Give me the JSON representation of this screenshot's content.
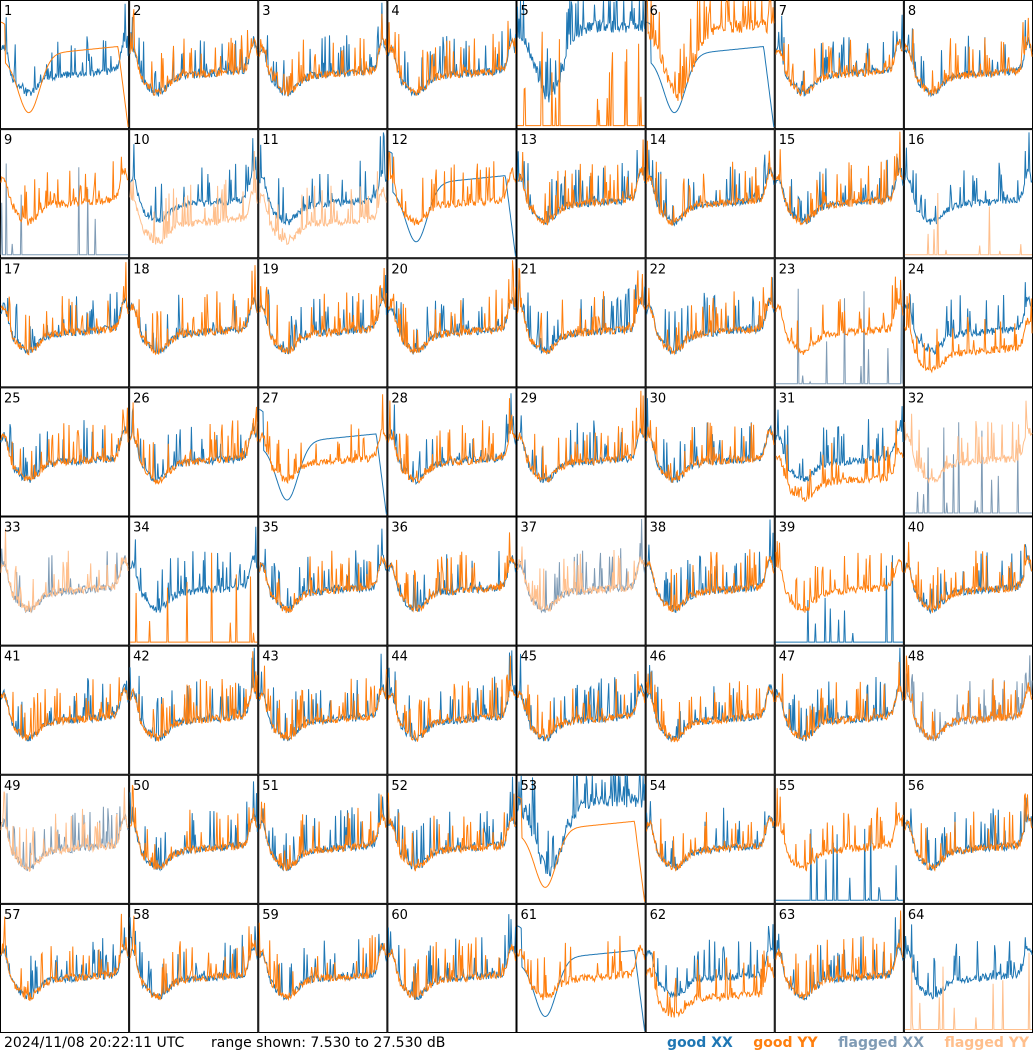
{
  "footer": {
    "timestamp": "2024/11/08 20:22:11 UTC",
    "range_text": "range shown: 7.530 to 27.530 dB"
  },
  "legend": {
    "good_xx": "good XX",
    "good_yy": "good YY",
    "flagged_xx": "flagged XX",
    "flagged_yy": "flagged YY"
  },
  "colors": {
    "good_xx": "#1f77b4",
    "good_yy": "#ff7f0e",
    "flagged_xx": "#7f9bb5",
    "flagged_yy": "#ffbf8c",
    "panel_border": "#000000"
  },
  "chart_data": {
    "type": "line",
    "layout": "8x8 small multiples",
    "ylim_db": [
      7.53,
      27.53
    ],
    "panels": [
      {
        "label": "1",
        "xx": "good",
        "yy": "good",
        "xx_shape": "noisy",
        "yy_shape": "smooth-bowl"
      },
      {
        "label": "2",
        "xx": "good",
        "yy": "good",
        "xx_shape": "noisy",
        "yy_shape": "noisy"
      },
      {
        "label": "3",
        "xx": "good",
        "yy": "good",
        "xx_shape": "noisy",
        "yy_shape": "noisy"
      },
      {
        "label": "4",
        "xx": "good",
        "yy": "good",
        "xx_shape": "noisy",
        "yy_shape": "noisy"
      },
      {
        "label": "5",
        "xx": "good",
        "yy": "good",
        "xx_shape": "deep-noisy",
        "yy_shape": "spikes-low"
      },
      {
        "label": "6",
        "xx": "good",
        "yy": "good",
        "xx_shape": "smooth-bowl",
        "yy_shape": "deep-noisy"
      },
      {
        "label": "7",
        "xx": "good",
        "yy": "good",
        "xx_shape": "noisy",
        "yy_shape": "noisy"
      },
      {
        "label": "8",
        "xx": "good",
        "yy": "good",
        "xx_shape": "noisy",
        "yy_shape": "noisy"
      },
      {
        "label": "9",
        "xx": "flagged",
        "yy": "good",
        "xx_shape": "spikes-low",
        "yy_shape": "noisy"
      },
      {
        "label": "10",
        "xx": "good",
        "yy": "flagged",
        "xx_shape": "noisy",
        "yy_shape": "low-noisy"
      },
      {
        "label": "11",
        "xx": "good",
        "yy": "flagged",
        "xx_shape": "noisy",
        "yy_shape": "low-noisy"
      },
      {
        "label": "12",
        "xx": "good",
        "yy": "good",
        "xx_shape": "smooth-bowl",
        "yy_shape": "noisy"
      },
      {
        "label": "13",
        "xx": "good",
        "yy": "good",
        "xx_shape": "noisy",
        "yy_shape": "noisy"
      },
      {
        "label": "14",
        "xx": "good",
        "yy": "good",
        "xx_shape": "noisy",
        "yy_shape": "noisy"
      },
      {
        "label": "15",
        "xx": "good",
        "yy": "good",
        "xx_shape": "noisy",
        "yy_shape": "noisy"
      },
      {
        "label": "16",
        "xx": "good",
        "yy": "flagged",
        "xx_shape": "noisy",
        "yy_shape": "spikes-low"
      },
      {
        "label": "17",
        "xx": "good",
        "yy": "good",
        "xx_shape": "noisy",
        "yy_shape": "noisy"
      },
      {
        "label": "18",
        "xx": "good",
        "yy": "good",
        "xx_shape": "noisy",
        "yy_shape": "noisy"
      },
      {
        "label": "19",
        "xx": "good",
        "yy": "good",
        "xx_shape": "noisy",
        "yy_shape": "noisy"
      },
      {
        "label": "20",
        "xx": "good",
        "yy": "good",
        "xx_shape": "noisy",
        "yy_shape": "noisy"
      },
      {
        "label": "21",
        "xx": "good",
        "yy": "good",
        "xx_shape": "noisy",
        "yy_shape": "noisy"
      },
      {
        "label": "22",
        "xx": "good",
        "yy": "good",
        "xx_shape": "noisy",
        "yy_shape": "noisy"
      },
      {
        "label": "23",
        "xx": "flagged",
        "yy": "good",
        "xx_shape": "spikes-low",
        "yy_shape": "noisy"
      },
      {
        "label": "24",
        "xx": "good",
        "yy": "good",
        "xx_shape": "noisy",
        "yy_shape": "low-noisy"
      },
      {
        "label": "25",
        "xx": "good",
        "yy": "good",
        "xx_shape": "noisy",
        "yy_shape": "noisy"
      },
      {
        "label": "26",
        "xx": "good",
        "yy": "good",
        "xx_shape": "noisy",
        "yy_shape": "noisy"
      },
      {
        "label": "27",
        "xx": "good",
        "yy": "good",
        "xx_shape": "smooth-bowl",
        "yy_shape": "noisy"
      },
      {
        "label": "28",
        "xx": "good",
        "yy": "good",
        "xx_shape": "noisy",
        "yy_shape": "noisy"
      },
      {
        "label": "29",
        "xx": "good",
        "yy": "good",
        "xx_shape": "noisy",
        "yy_shape": "noisy"
      },
      {
        "label": "30",
        "xx": "good",
        "yy": "good",
        "xx_shape": "noisy",
        "yy_shape": "noisy"
      },
      {
        "label": "31",
        "xx": "good",
        "yy": "good",
        "xx_shape": "noisy",
        "yy_shape": "low-noisy"
      },
      {
        "label": "32",
        "xx": "flagged",
        "yy": "flagged",
        "xx_shape": "spikes-low",
        "yy_shape": "noisy"
      },
      {
        "label": "33",
        "xx": "flagged",
        "yy": "flagged",
        "xx_shape": "noisy",
        "yy_shape": "noisy"
      },
      {
        "label": "34",
        "xx": "good",
        "yy": "good",
        "xx_shape": "noisy",
        "yy_shape": "spikes-low"
      },
      {
        "label": "35",
        "xx": "good",
        "yy": "good",
        "xx_shape": "noisy",
        "yy_shape": "noisy"
      },
      {
        "label": "36",
        "xx": "good",
        "yy": "good",
        "xx_shape": "noisy",
        "yy_shape": "noisy"
      },
      {
        "label": "37",
        "xx": "flagged",
        "yy": "flagged",
        "xx_shape": "noisy",
        "yy_shape": "noisy"
      },
      {
        "label": "38",
        "xx": "good",
        "yy": "good",
        "xx_shape": "noisy",
        "yy_shape": "noisy"
      },
      {
        "label": "39",
        "xx": "good",
        "yy": "good",
        "xx_shape": "spikes-low",
        "yy_shape": "noisy"
      },
      {
        "label": "40",
        "xx": "good",
        "yy": "good",
        "xx_shape": "noisy",
        "yy_shape": "noisy"
      },
      {
        "label": "41",
        "xx": "good",
        "yy": "good",
        "xx_shape": "noisy",
        "yy_shape": "noisy"
      },
      {
        "label": "42",
        "xx": "good",
        "yy": "good",
        "xx_shape": "noisy",
        "yy_shape": "noisy"
      },
      {
        "label": "43",
        "xx": "good",
        "yy": "good",
        "xx_shape": "noisy",
        "yy_shape": "noisy"
      },
      {
        "label": "44",
        "xx": "good",
        "yy": "good",
        "xx_shape": "noisy",
        "yy_shape": "noisy"
      },
      {
        "label": "45",
        "xx": "good",
        "yy": "good",
        "xx_shape": "noisy",
        "yy_shape": "noisy"
      },
      {
        "label": "46",
        "xx": "good",
        "yy": "good",
        "xx_shape": "noisy",
        "yy_shape": "noisy"
      },
      {
        "label": "47",
        "xx": "good",
        "yy": "good",
        "xx_shape": "noisy",
        "yy_shape": "noisy"
      },
      {
        "label": "48",
        "xx": "flagged",
        "yy": "good",
        "xx_shape": "noisy",
        "yy_shape": "noisy"
      },
      {
        "label": "49",
        "xx": "flagged",
        "yy": "flagged",
        "xx_shape": "noisy",
        "yy_shape": "noisy"
      },
      {
        "label": "50",
        "xx": "good",
        "yy": "good",
        "xx_shape": "noisy",
        "yy_shape": "noisy"
      },
      {
        "label": "51",
        "xx": "good",
        "yy": "good",
        "xx_shape": "noisy",
        "yy_shape": "noisy"
      },
      {
        "label": "52",
        "xx": "good",
        "yy": "good",
        "xx_shape": "noisy",
        "yy_shape": "noisy"
      },
      {
        "label": "53",
        "xx": "good",
        "yy": "good",
        "xx_shape": "deep-noisy",
        "yy_shape": "smooth-bowl"
      },
      {
        "label": "54",
        "xx": "good",
        "yy": "good",
        "xx_shape": "noisy",
        "yy_shape": "noisy"
      },
      {
        "label": "55",
        "xx": "good",
        "yy": "good",
        "xx_shape": "spikes-low",
        "yy_shape": "noisy"
      },
      {
        "label": "56",
        "xx": "good",
        "yy": "good",
        "xx_shape": "noisy",
        "yy_shape": "noisy"
      },
      {
        "label": "57",
        "xx": "good",
        "yy": "good",
        "xx_shape": "noisy",
        "yy_shape": "noisy"
      },
      {
        "label": "58",
        "xx": "good",
        "yy": "good",
        "xx_shape": "noisy",
        "yy_shape": "noisy"
      },
      {
        "label": "59",
        "xx": "good",
        "yy": "good",
        "xx_shape": "noisy",
        "yy_shape": "noisy"
      },
      {
        "label": "60",
        "xx": "good",
        "yy": "good",
        "xx_shape": "noisy",
        "yy_shape": "noisy"
      },
      {
        "label": "61",
        "xx": "good",
        "yy": "good",
        "xx_shape": "smooth-bowl",
        "yy_shape": "noisy"
      },
      {
        "label": "62",
        "xx": "good",
        "yy": "good",
        "xx_shape": "noisy",
        "yy_shape": "low-noisy"
      },
      {
        "label": "63",
        "xx": "good",
        "yy": "good",
        "xx_shape": "noisy",
        "yy_shape": "noisy"
      },
      {
        "label": "64",
        "xx": "good",
        "yy": "flagged",
        "xx_shape": "noisy",
        "yy_shape": "spikes-low"
      }
    ]
  }
}
